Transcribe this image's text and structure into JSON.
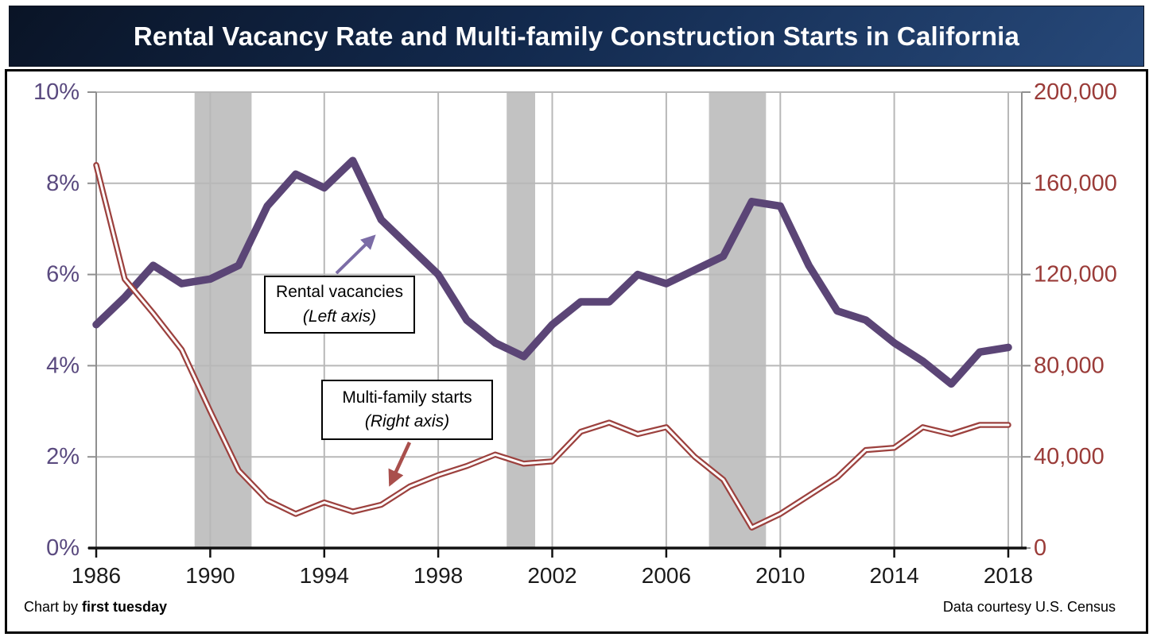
{
  "title": "Rental Vacancy Rate and Multi-family Construction Starts in California",
  "footer": {
    "left_prefix": "Chart by ",
    "left_brand": "first tuesday",
    "right": "Data courtesy U.S. Census"
  },
  "annotations": {
    "vacancies": {
      "line1": "Rental vacancies",
      "line2": "(Left axis)"
    },
    "starts": {
      "line1": "Multi-family starts",
      "line2": "(Right axis)"
    }
  },
  "colors": {
    "series_vacancy": "#5b4576",
    "series_starts": "#9c413e",
    "left_label": "#5a4a7f",
    "right_label": "#9a3b38",
    "year_label": "#1a1a1a",
    "band": "#c2c2c2",
    "grid": "#b8b8b8",
    "axis": "#8f8f8f",
    "x_axis": "#111111",
    "arrow_purple": "#7b6ca6",
    "arrow_red": "#a94f4c",
    "title_bg_top": "#0a1426",
    "title_bg_bottom": "#27497a"
  },
  "chart_data": {
    "type": "line",
    "title": "Rental Vacancy Rate and Multi-family Construction Starts in California",
    "x": [
      1986,
      1987,
      1988,
      1989,
      1990,
      1991,
      1992,
      1993,
      1994,
      1995,
      1996,
      1997,
      1998,
      1999,
      2000,
      2001,
      2002,
      2003,
      2004,
      2005,
      2006,
      2007,
      2008,
      2009,
      2010,
      2011,
      2012,
      2013,
      2014,
      2015,
      2016,
      2017,
      2018
    ],
    "x_ticks": [
      1986,
      1990,
      1994,
      1998,
      2002,
      2006,
      2010,
      2014,
      2018
    ],
    "x_tick_labels": [
      "1986",
      "1990",
      "1994",
      "1998",
      "2002",
      "2006",
      "2010",
      "2014",
      "2018"
    ],
    "series": [
      {
        "id": "rental-vacancies",
        "name": "Rental vacancies (Left axis)",
        "axis": "left",
        "style": "solid",
        "color": "#5b4576",
        "values": [
          4.9,
          5.5,
          6.2,
          5.8,
          5.9,
          6.2,
          7.5,
          8.2,
          7.9,
          8.5,
          7.2,
          6.6,
          6.0,
          5.0,
          4.5,
          4.2,
          4.9,
          5.4,
          5.4,
          6.0,
          5.8,
          6.1,
          6.4,
          7.6,
          7.5,
          6.2,
          5.2,
          5.0,
          4.5,
          4.1,
          3.6,
          4.3,
          4.4
        ]
      },
      {
        "id": "multi-family-starts",
        "name": "Multi-family starts (Right axis)",
        "axis": "right",
        "style": "double",
        "color": "#9c413e",
        "values": [
          168000,
          118000,
          103000,
          87000,
          60000,
          34000,
          21000,
          15000,
          20000,
          16000,
          19000,
          27000,
          32000,
          36000,
          41000,
          37000,
          38000,
          51000,
          55000,
          50000,
          53000,
          40000,
          30000,
          9000,
          15000,
          23000,
          31000,
          43000,
          44000,
          53000,
          50000,
          54000,
          54000
        ]
      }
    ],
    "left_axis": {
      "min": 0,
      "max": 10,
      "tick_values": [
        0,
        2,
        4,
        6,
        8,
        10
      ],
      "tick_labels": [
        "0%",
        "2%",
        "4%",
        "6%",
        "8%",
        "10%"
      ],
      "color": "#5a4a7f"
    },
    "right_axis": {
      "min": 0,
      "max": 200000,
      "tick_values": [
        0,
        40000,
        80000,
        120000,
        160000,
        200000
      ],
      "tick_labels": [
        "0",
        "40,000",
        "80,000",
        "120,000",
        "160,000",
        "200,000"
      ],
      "color": "#9a3b38"
    },
    "recession_bands": [
      [
        1989.45,
        1991.45
      ],
      [
        2000.4,
        2001.4
      ],
      [
        2007.5,
        2009.5
      ]
    ],
    "grid": true,
    "legend_position": "annotation-boxes"
  }
}
